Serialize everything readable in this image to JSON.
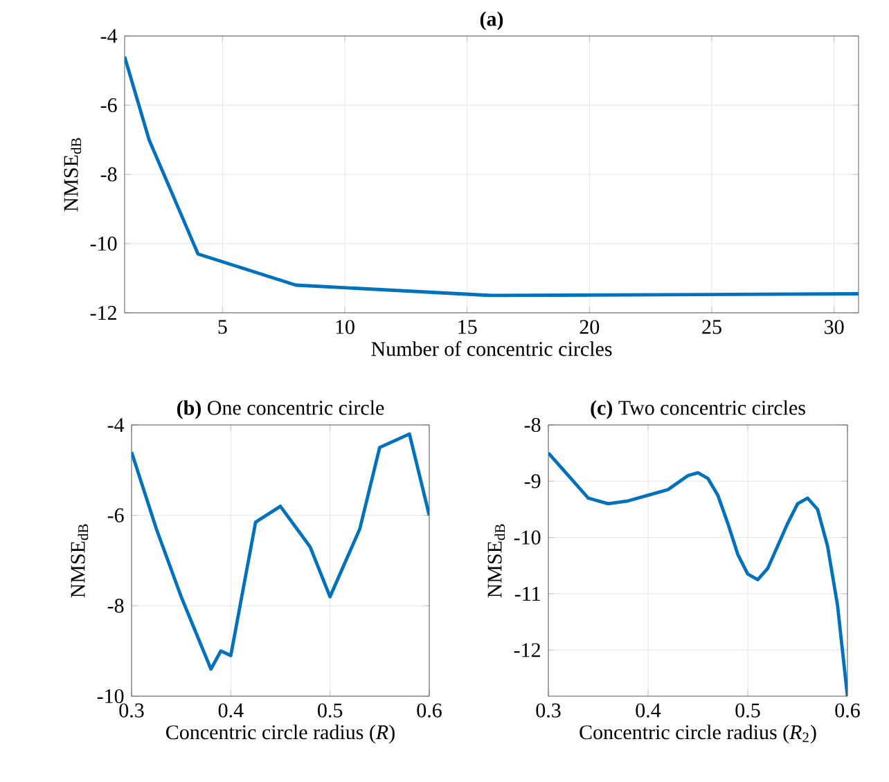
{
  "chart_data": [
    {
      "type": "line",
      "title": "**(a)**",
      "xlabel": "Number of concentric circles",
      "ylabel": "NMSE$_{dB}$",
      "x": [
        1,
        2,
        4,
        8,
        16,
        31
      ],
      "values": [
        -4.6,
        -7,
        -10.3,
        -11.2,
        -11.5,
        -11.45
      ],
      "color": "#0072bd",
      "xlim": [
        1,
        31
      ],
      "ylim": [
        -12,
        -4
      ],
      "xticks": [
        5,
        10,
        15,
        20,
        25,
        30
      ],
      "yticks": [
        -12,
        -10,
        -8,
        -6,
        -4
      ],
      "grid": true
    },
    {
      "type": "line",
      "title": "**(b)** One concentric circle",
      "xlabel": "Concentric circle radius (*R*)",
      "ylabel": "NMSE$_{dB}$",
      "x": [
        0.3,
        0.325,
        0.35,
        0.38,
        0.39,
        0.4,
        0.425,
        0.45,
        0.48,
        0.5,
        0.53,
        0.55,
        0.58,
        0.6
      ],
      "values": [
        -4.6,
        -6.3,
        -7.8,
        -9.4,
        -9.0,
        -9.1,
        -6.15,
        -5.8,
        -6.7,
        -7.8,
        -6.3,
        -4.5,
        -4.2,
        -6.0
      ],
      "color": "#0072bd",
      "xlim": [
        0.3,
        0.6
      ],
      "ylim": [
        -10,
        -4
      ],
      "xticks": [
        0.3,
        0.4,
        0.5,
        0.6
      ],
      "yticks": [
        -10,
        -8,
        -6,
        -4
      ],
      "grid": true
    },
    {
      "type": "line",
      "title": "**(c)** Two concentric circles",
      "xlabel": "Concentric circle radius (*R*$_{2}$)",
      "ylabel": "NMSE$_{dB}$",
      "x": [
        0.3,
        0.32,
        0.34,
        0.36,
        0.38,
        0.4,
        0.42,
        0.44,
        0.45,
        0.46,
        0.47,
        0.48,
        0.49,
        0.5,
        0.51,
        0.52,
        0.53,
        0.54,
        0.55,
        0.56,
        0.57,
        0.58,
        0.59,
        0.6
      ],
      "values": [
        -8.5,
        -8.9,
        -9.3,
        -9.4,
        -9.35,
        -9.25,
        -9.15,
        -8.9,
        -8.85,
        -8.95,
        -9.25,
        -9.75,
        -10.3,
        -10.65,
        -10.75,
        -10.55,
        -10.15,
        -9.75,
        -9.4,
        -9.3,
        -9.5,
        -10.15,
        -11.2,
        -12.82
      ],
      "color": "#0072bd",
      "xlim": [
        0.3,
        0.6
      ],
      "ylim": [
        -12.82,
        -8
      ],
      "xticks": [
        0.3,
        0.4,
        0.5,
        0.6
      ],
      "yticks": [
        -12,
        -11,
        -10,
        -9,
        -8
      ],
      "grid": true
    }
  ]
}
